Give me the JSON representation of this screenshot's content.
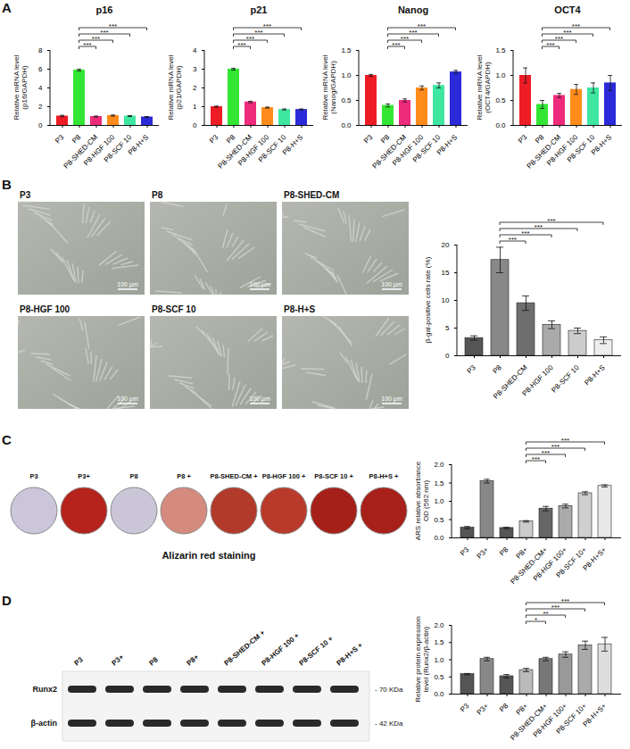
{
  "chart_data": [
    {
      "type": "bar",
      "title": "p16",
      "ylabel": "Relative mRNA level\n(p16/GAPDH)",
      "categories": [
        "P3",
        "P8",
        "P8-SHED-CM",
        "P8-HGF 100",
        "P8-SCF 10",
        "P8-H+S"
      ],
      "values": [
        1.0,
        5.9,
        0.95,
        1.05,
        1.0,
        0.9
      ],
      "errors": [
        0.08,
        0.1,
        0.05,
        0.06,
        0.05,
        0.05
      ],
      "colors": [
        "#ee1c25",
        "#33e633",
        "#ee2a7b",
        "#ff8c1a",
        "#3ee6a0",
        "#2a2ad9"
      ],
      "ylim": [
        0,
        8
      ],
      "yticks": [
        0,
        2,
        4,
        6,
        8
      ],
      "significance": [
        {
          "from": "P8",
          "to": "P8-SHED-CM",
          "label": "***"
        },
        {
          "from": "P8",
          "to": "P8-HGF 100",
          "label": "***"
        },
        {
          "from": "P8",
          "to": "P8-SCF 10",
          "label": "***"
        },
        {
          "from": "P8",
          "to": "P8-H+S",
          "label": "***"
        }
      ]
    },
    {
      "type": "bar",
      "title": "p21",
      "ylabel": "Relative mRNA level\n(p21/GAPDH)",
      "categories": [
        "P3",
        "P8",
        "P8-SHED-CM",
        "P8-HGF 100",
        "P8-SCF 10",
        "P8-H+S"
      ],
      "values": [
        1.0,
        3.0,
        1.25,
        0.95,
        0.85,
        0.85
      ],
      "errors": [
        0.03,
        0.05,
        0.04,
        0.03,
        0.03,
        0.03
      ],
      "colors": [
        "#ee1c25",
        "#33e633",
        "#ee2a7b",
        "#ff8c1a",
        "#3ee6a0",
        "#2a2ad9"
      ],
      "ylim": [
        0,
        4
      ],
      "yticks": [
        0,
        1,
        2,
        3,
        4
      ],
      "significance": [
        {
          "from": "P8",
          "to": "P8-SHED-CM",
          "label": "***"
        },
        {
          "from": "P8",
          "to": "P8-HGF 100",
          "label": "***"
        },
        {
          "from": "P8",
          "to": "P8-SCF 10",
          "label": "***"
        },
        {
          "from": "P8",
          "to": "P8-H+S",
          "label": "***"
        }
      ]
    },
    {
      "type": "bar",
      "title": "Nanog",
      "ylabel": "Relative mRNA level\n(Nanog/GAPDH)",
      "categories": [
        "P3",
        "P8",
        "P8-SHED-CM",
        "P8-HGF 100",
        "P8-SCF 10",
        "P8-H+S"
      ],
      "values": [
        1.0,
        0.4,
        0.5,
        0.75,
        0.8,
        1.07
      ],
      "errors": [
        0.02,
        0.03,
        0.03,
        0.04,
        0.05,
        0.03
      ],
      "colors": [
        "#ee1c25",
        "#33e633",
        "#ee2a7b",
        "#ff8c1a",
        "#3ee6a0",
        "#2a2ad9"
      ],
      "ylim": [
        0,
        1.5
      ],
      "yticks": [
        {
          "value": 0,
          "label": "0.0"
        },
        {
          "value": 0.5,
          "label": "0.5"
        },
        {
          "value": 1,
          "label": "1.0"
        },
        {
          "value": 1.5,
          "label": "1.5"
        }
      ],
      "significance": [
        {
          "from": "P8",
          "to": "P8-SHED-CM",
          "label": "***"
        },
        {
          "from": "P8",
          "to": "P8-HGF 100",
          "label": "***"
        },
        {
          "from": "P8",
          "to": "P8-SCF 10",
          "label": "***"
        },
        {
          "from": "P8",
          "to": "P8-H+S",
          "label": "***"
        }
      ]
    },
    {
      "type": "bar",
      "title": "OCT4",
      "ylabel": "Relative mRNA level\n(OCT4/GAPDH)",
      "categories": [
        "P3",
        "P8",
        "P8-SHED-CM",
        "P8-HGF 100",
        "P8-SCF 10",
        "P8-H+S"
      ],
      "values": [
        1.0,
        0.42,
        0.6,
        0.72,
        0.75,
        0.85
      ],
      "errors": [
        0.15,
        0.08,
        0.04,
        0.1,
        0.1,
        0.15
      ],
      "colors": [
        "#ee1c25",
        "#33e633",
        "#ee2a7b",
        "#ff8c1a",
        "#3ee6a0",
        "#2a2ad9"
      ],
      "ylim": [
        0,
        1.5
      ],
      "yticks": [
        {
          "value": 0,
          "label": "0.0"
        },
        {
          "value": 0.5,
          "label": "0.5"
        },
        {
          "value": 1,
          "label": "1.0"
        },
        {
          "value": 1.5,
          "label": "1.5"
        }
      ],
      "significance": [
        {
          "from": "P8",
          "to": "P8-SHED-CM",
          "label": "***"
        },
        {
          "from": "P8",
          "to": "P8-HGF 100",
          "label": "***"
        },
        {
          "from": "P8",
          "to": "P8-SCF 10",
          "label": "***"
        },
        {
          "from": "P8",
          "to": "P8-H+S",
          "label": "***"
        }
      ]
    },
    {
      "type": "bar",
      "ylabel": "β-gal-positive cells rate (%)",
      "categories": [
        "P3",
        "P8",
        "P8-SHED-CM",
        "P8-HGF 100",
        "P8-SCF 10",
        "P8-H+S"
      ],
      "values": [
        3.2,
        17.3,
        9.5,
        5.6,
        4.5,
        2.8
      ],
      "errors": [
        0.4,
        2.3,
        1.3,
        0.7,
        0.5,
        0.6
      ],
      "colors": [
        "#555555",
        "#888888",
        "#6e6e6e",
        "#aaaaaa",
        "#cccccc",
        "#eeeeee"
      ],
      "ylim": [
        0,
        20
      ],
      "yticks": [
        0,
        5,
        10,
        15,
        20
      ],
      "significance": [
        {
          "from": "P8",
          "to": "P8-SHED-CM",
          "label": "***"
        },
        {
          "from": "P8",
          "to": "P8-HGF 100",
          "label": "***"
        },
        {
          "from": "P8",
          "to": "P8-SCF 10",
          "label": "***"
        },
        {
          "from": "P8",
          "to": "P8-H+S",
          "label": "***"
        }
      ]
    },
    {
      "type": "bar",
      "ylabel": "ARS relative absorbance\nOD (562 nm)",
      "categories": [
        "P3",
        "P3+",
        "P8",
        "P8+",
        "P8-SHED-CM+",
        "P8-HGF 100+",
        "P8-SCF 10+",
        "P8-H+S+"
      ],
      "values": [
        0.28,
        1.55,
        0.27,
        0.45,
        0.8,
        0.87,
        1.22,
        1.42
      ],
      "errors": [
        0.03,
        0.05,
        0.02,
        0.02,
        0.06,
        0.05,
        0.04,
        0.03
      ],
      "colors": [
        "#555555",
        "#888888",
        "#555555",
        "#cccccc",
        "#666666",
        "#aaaaaa",
        "#cfcfcf",
        "#e8e8e8"
      ],
      "ylim": [
        0,
        2
      ],
      "yticks": [
        {
          "value": 0,
          "label": "0.0"
        },
        {
          "value": 0.5,
          "label": "0.5"
        },
        {
          "value": 1,
          "label": "1.0"
        },
        {
          "value": 1.5,
          "label": "1.5"
        },
        {
          "value": 2,
          "label": "2.0"
        }
      ],
      "significance": [
        {
          "from": "P8+",
          "to": "P8-SHED-CM+",
          "label": "***"
        },
        {
          "from": "P8+",
          "to": "P8-HGF 100+",
          "label": "***"
        },
        {
          "from": "P8+",
          "to": "P8-SCF 10+",
          "label": "***"
        },
        {
          "from": "P8+",
          "to": "P8-H+S+",
          "label": "***"
        }
      ]
    },
    {
      "type": "bar",
      "ylabel": "Relative protein expression\nlevel (Runx2/β-actin)",
      "categories": [
        "P3",
        "P3+",
        "P8",
        "P8+",
        "P8-SHED-CM+",
        "P8-HGF 100+",
        "P8-SCF 10+",
        "P8-H+S+"
      ],
      "values": [
        0.58,
        1.02,
        0.52,
        0.7,
        1.02,
        1.15,
        1.42,
        1.45
      ],
      "errors": [
        0.02,
        0.05,
        0.05,
        0.05,
        0.05,
        0.08,
        0.12,
        0.2
      ],
      "colors": [
        "#555555",
        "#888888",
        "#555555",
        "#bbbbbb",
        "#777777",
        "#999999",
        "#aaaaaa",
        "#dddddd"
      ],
      "ylim": [
        0,
        2
      ],
      "yticks": [
        {
          "value": 0,
          "label": "0.0"
        },
        {
          "value": 0.5,
          "label": "0.5"
        },
        {
          "value": 1,
          "label": "1.0"
        },
        {
          "value": 1.5,
          "label": "1.5"
        },
        {
          "value": 2,
          "label": "2.0"
        }
      ],
      "significance": [
        {
          "from": "P8+",
          "to": "P8-SHED-CM+",
          "label": "*"
        },
        {
          "from": "P8+",
          "to": "P8-HGF 100+",
          "label": "**"
        },
        {
          "from": "P8+",
          "to": "P8-SCF 10+",
          "label": "***"
        },
        {
          "from": "P8+",
          "to": "P8-H+S+",
          "label": "***"
        }
      ]
    }
  ],
  "panel_labels": [
    "A",
    "B",
    "C",
    "D"
  ],
  "micrographs": {
    "labels": [
      "P3",
      "P8",
      "P8-SHED-CM",
      "P8-HGF 100",
      "P8-SCF 10",
      "P8-H+S"
    ],
    "scale_bar": "100 µm"
  },
  "wells": {
    "labels": [
      "P3",
      "P3+",
      "P8",
      "P8 +",
      "P8-SHED-CM +",
      "P8-HGF 100 +",
      "P8-SCF 10 +",
      "P8-H+S +"
    ],
    "colors": [
      "#cbc6d9",
      "#b5231c",
      "#cac6d8",
      "#d58a7e",
      "#b23a2a",
      "#b93a2a",
      "#a52019",
      "#a8201a"
    ],
    "caption": "Alizarin red staining"
  },
  "blot": {
    "lanes": [
      "P3",
      "P3+",
      "P8",
      "P8+",
      "P8-SHED-CM +",
      "P8-HGF 100 +",
      "P8-SCF 10 +",
      "P8-H+S +"
    ],
    "bands": [
      {
        "name": "Runx2",
        "size": "- 70 KDa"
      },
      {
        "name": "β-actin",
        "size": "- 42 KDa"
      }
    ]
  }
}
